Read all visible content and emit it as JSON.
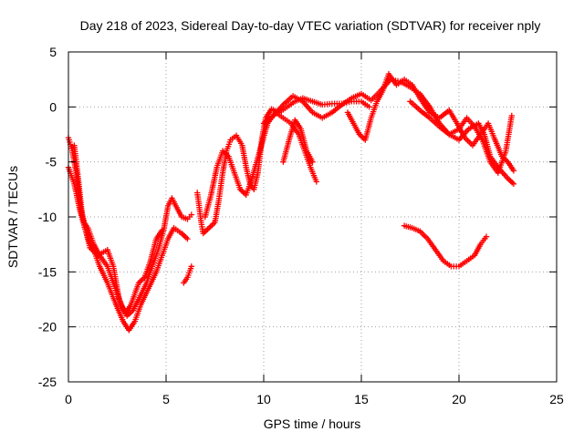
{
  "chart_data": {
    "type": "scatter",
    "title": "Day 218 of 2023, Sidereal Day-to-day VTEC variation (SDTVAR) for receiver nply",
    "xlabel": "GPS time / hours",
    "ylabel": "SDTVAR / TECUs",
    "xlim": [
      0,
      25
    ],
    "ylim": [
      -25,
      5
    ],
    "xticks": [
      0,
      5,
      10,
      15,
      20,
      25
    ],
    "yticks": [
      -25,
      -20,
      -15,
      -10,
      -5,
      0,
      5
    ],
    "xtick_labels": [
      "0",
      "5",
      "10",
      "15",
      "20",
      "25"
    ],
    "ytick_labels": [
      "-25",
      "-20",
      "-15",
      "-10",
      "-5",
      "0",
      "5"
    ],
    "grid": true,
    "marker": "+",
    "series": [
      {
        "name": "track-1",
        "color": "#ff0000",
        "points": [
          [
            0.0,
            -2.8
          ],
          [
            0.2,
            -4.0
          ],
          [
            0.4,
            -6.0
          ],
          [
            0.6,
            -9.0
          ],
          [
            0.8,
            -10.5
          ],
          [
            1.0,
            -11.0
          ],
          [
            1.3,
            -12.5
          ],
          [
            1.6,
            -13.5
          ],
          [
            2.0,
            -14.5
          ],
          [
            2.4,
            -16.5
          ],
          [
            2.7,
            -18.0
          ],
          [
            3.0,
            -19.0
          ],
          [
            3.3,
            -18.5
          ],
          [
            3.6,
            -17.5
          ],
          [
            4.0,
            -16.0
          ],
          [
            4.3,
            -14.5
          ],
          [
            4.6,
            -13.0
          ],
          [
            4.9,
            -11.0
          ],
          [
            5.1,
            -9.0
          ],
          [
            5.3,
            -8.3
          ],
          [
            5.5,
            -9.0
          ],
          [
            5.8,
            -10.0
          ],
          [
            6.1,
            -10.2
          ],
          [
            6.3,
            -9.8
          ]
        ]
      },
      {
        "name": "track-2",
        "color": "#ff0000",
        "points": [
          [
            0.0,
            -5.5
          ],
          [
            0.3,
            -7.0
          ],
          [
            0.6,
            -9.5
          ],
          [
            1.0,
            -12.0
          ],
          [
            1.3,
            -13.0
          ],
          [
            1.6,
            -14.5
          ],
          [
            2.0,
            -16.0
          ],
          [
            2.4,
            -17.8
          ],
          [
            2.8,
            -19.5
          ],
          [
            3.1,
            -20.3
          ],
          [
            3.4,
            -19.5
          ],
          [
            3.7,
            -18.0
          ],
          [
            4.1,
            -16.5
          ],
          [
            4.5,
            -15.0
          ],
          [
            4.8,
            -13.5
          ],
          [
            5.1,
            -12.0
          ],
          [
            5.4,
            -11.0
          ],
          [
            5.8,
            -11.5
          ],
          [
            6.1,
            -12.0
          ]
        ]
      },
      {
        "name": "track-3",
        "color": "#ff0000",
        "points": [
          [
            0.3,
            -3.5
          ],
          [
            0.5,
            -6.5
          ],
          [
            0.7,
            -9.8
          ],
          [
            1.1,
            -12.8
          ],
          [
            1.5,
            -13.5
          ],
          [
            2.0,
            -13.0
          ],
          [
            2.3,
            -14.5
          ],
          [
            2.6,
            -17.5
          ],
          [
            2.9,
            -18.8
          ],
          [
            3.2,
            -18.0
          ],
          [
            3.6,
            -16.0
          ],
          [
            3.9,
            -15.5
          ],
          [
            4.2,
            -14.0
          ],
          [
            4.5,
            -12.0
          ],
          [
            4.8,
            -11.2
          ]
        ]
      },
      {
        "name": "track-4",
        "color": "#ff0000",
        "points": [
          [
            5.9,
            -16.0
          ],
          [
            6.1,
            -15.5
          ],
          [
            6.3,
            -14.5
          ]
        ]
      },
      {
        "name": "track-5",
        "color": "#ff0000",
        "points": [
          [
            6.6,
            -7.8
          ],
          [
            6.8,
            -10.5
          ],
          [
            6.9,
            -11.5
          ],
          [
            7.2,
            -11.0
          ],
          [
            7.5,
            -10.5
          ],
          [
            7.7,
            -8.5
          ],
          [
            7.9,
            -6.0
          ],
          [
            8.1,
            -4.0
          ],
          [
            8.3,
            -3.0
          ],
          [
            8.6,
            -2.6
          ],
          [
            8.9,
            -3.5
          ],
          [
            9.1,
            -5.5
          ],
          [
            9.3,
            -7.0
          ],
          [
            9.5,
            -7.5
          ],
          [
            9.7,
            -6.0
          ],
          [
            9.9,
            -3.0
          ],
          [
            10.1,
            -1.0
          ],
          [
            10.4,
            -0.2
          ],
          [
            10.8,
            -0.5
          ],
          [
            11.2,
            0.0
          ],
          [
            11.6,
            0.5
          ],
          [
            12.0,
            0.8
          ],
          [
            12.5,
            0.5
          ],
          [
            13.0,
            0.2
          ],
          [
            13.5,
            0.3
          ],
          [
            14.0,
            0.3
          ],
          [
            14.5,
            0.5
          ],
          [
            15.0,
            0.5
          ],
          [
            15.4,
            0.0
          ]
        ]
      },
      {
        "name": "track-6",
        "color": "#ff0000",
        "points": [
          [
            7.0,
            -10.0
          ],
          [
            7.3,
            -8.0
          ],
          [
            7.6,
            -5.5
          ],
          [
            7.9,
            -4.0
          ],
          [
            8.2,
            -4.5
          ],
          [
            8.5,
            -6.0
          ],
          [
            8.8,
            -7.5
          ],
          [
            9.1,
            -8.0
          ],
          [
            9.4,
            -6.5
          ],
          [
            9.8,
            -4.0
          ],
          [
            10.2,
            -1.5
          ],
          [
            10.6,
            -0.5
          ],
          [
            11.0,
            -1.0
          ],
          [
            11.4,
            -1.5
          ],
          [
            11.8,
            -2.5
          ],
          [
            12.1,
            -4.0
          ],
          [
            12.4,
            -5.5
          ],
          [
            12.7,
            -6.8
          ]
        ]
      },
      {
        "name": "track-7",
        "color": "#ff0000",
        "points": [
          [
            10.0,
            -1.5
          ],
          [
            10.5,
            -0.8
          ],
          [
            11.0,
            0.2
          ],
          [
            11.5,
            1.0
          ],
          [
            12.0,
            0.5
          ],
          [
            12.5,
            -0.5
          ],
          [
            13.0,
            -1.0
          ],
          [
            13.5,
            -0.5
          ],
          [
            14.0,
            0.2
          ],
          [
            14.5,
            0.8
          ],
          [
            15.0,
            1.2
          ],
          [
            15.5,
            0.6
          ],
          [
            16.0,
            1.5
          ],
          [
            16.5,
            2.5
          ],
          [
            17.0,
            2.3
          ],
          [
            17.5,
            1.8
          ],
          [
            18.0,
            1.2
          ],
          [
            18.5,
            0.0
          ],
          [
            19.0,
            -1.5
          ],
          [
            19.5,
            -2.5
          ],
          [
            20.0,
            -3.0
          ],
          [
            20.5,
            -2.0
          ],
          [
            21.0,
            -1.5
          ],
          [
            21.3,
            -2.5
          ],
          [
            21.6,
            -4.5
          ],
          [
            22.0,
            -5.5
          ],
          [
            22.5,
            -6.5
          ],
          [
            22.8,
            -7.0
          ]
        ]
      },
      {
        "name": "track-8",
        "color": "#ff0000",
        "points": [
          [
            11.0,
            -5.0
          ],
          [
            11.3,
            -3.0
          ],
          [
            11.6,
            -1.2
          ],
          [
            11.9,
            -2.0
          ],
          [
            12.2,
            -4.0
          ],
          [
            12.5,
            -5.0
          ]
        ]
      },
      {
        "name": "track-9",
        "color": "#ff0000",
        "points": [
          [
            14.3,
            -0.5
          ],
          [
            14.6,
            -1.5
          ],
          [
            14.9,
            -2.5
          ],
          [
            15.2,
            -3.0
          ],
          [
            15.5,
            -1.0
          ],
          [
            15.8,
            0.5
          ],
          [
            16.1,
            1.5
          ],
          [
            16.4,
            3.0
          ],
          [
            16.8,
            2.0
          ],
          [
            17.2,
            2.5
          ],
          [
            17.6,
            2.0
          ],
          [
            18.0,
            0.8
          ],
          [
            18.5,
            -0.5
          ],
          [
            19.0,
            -1.0
          ],
          [
            19.5,
            -0.3
          ],
          [
            19.9,
            -1.5
          ],
          [
            20.3,
            -2.8
          ],
          [
            20.7,
            -3.5
          ],
          [
            21.1,
            -2.5
          ],
          [
            21.5,
            -1.5
          ],
          [
            21.8,
            -2.8
          ],
          [
            22.2,
            -4.5
          ],
          [
            22.5,
            -5.0
          ],
          [
            22.8,
            -5.8
          ]
        ]
      },
      {
        "name": "track-10",
        "color": "#ff0000",
        "points": [
          [
            17.5,
            0.5
          ],
          [
            18.0,
            -0.3
          ],
          [
            18.5,
            -1.0
          ],
          [
            19.0,
            -1.8
          ],
          [
            19.5,
            -2.5
          ],
          [
            20.0,
            -2.0
          ],
          [
            20.4,
            -1.0
          ],
          [
            20.8,
            -1.8
          ],
          [
            21.2,
            -3.0
          ],
          [
            21.6,
            -5.0
          ],
          [
            22.0,
            -6.0
          ],
          [
            22.4,
            -4.0
          ],
          [
            22.7,
            -0.8
          ]
        ]
      },
      {
        "name": "track-11",
        "color": "#ff0000",
        "points": [
          [
            17.2,
            -10.8
          ],
          [
            17.6,
            -11.0
          ],
          [
            18.0,
            -11.3
          ],
          [
            18.4,
            -12.0
          ],
          [
            18.8,
            -13.0
          ],
          [
            19.2,
            -14.0
          ],
          [
            19.6,
            -14.5
          ],
          [
            20.0,
            -14.5
          ],
          [
            20.4,
            -14.0
          ],
          [
            20.8,
            -13.5
          ],
          [
            21.1,
            -12.5
          ],
          [
            21.4,
            -11.8
          ]
        ]
      }
    ]
  }
}
